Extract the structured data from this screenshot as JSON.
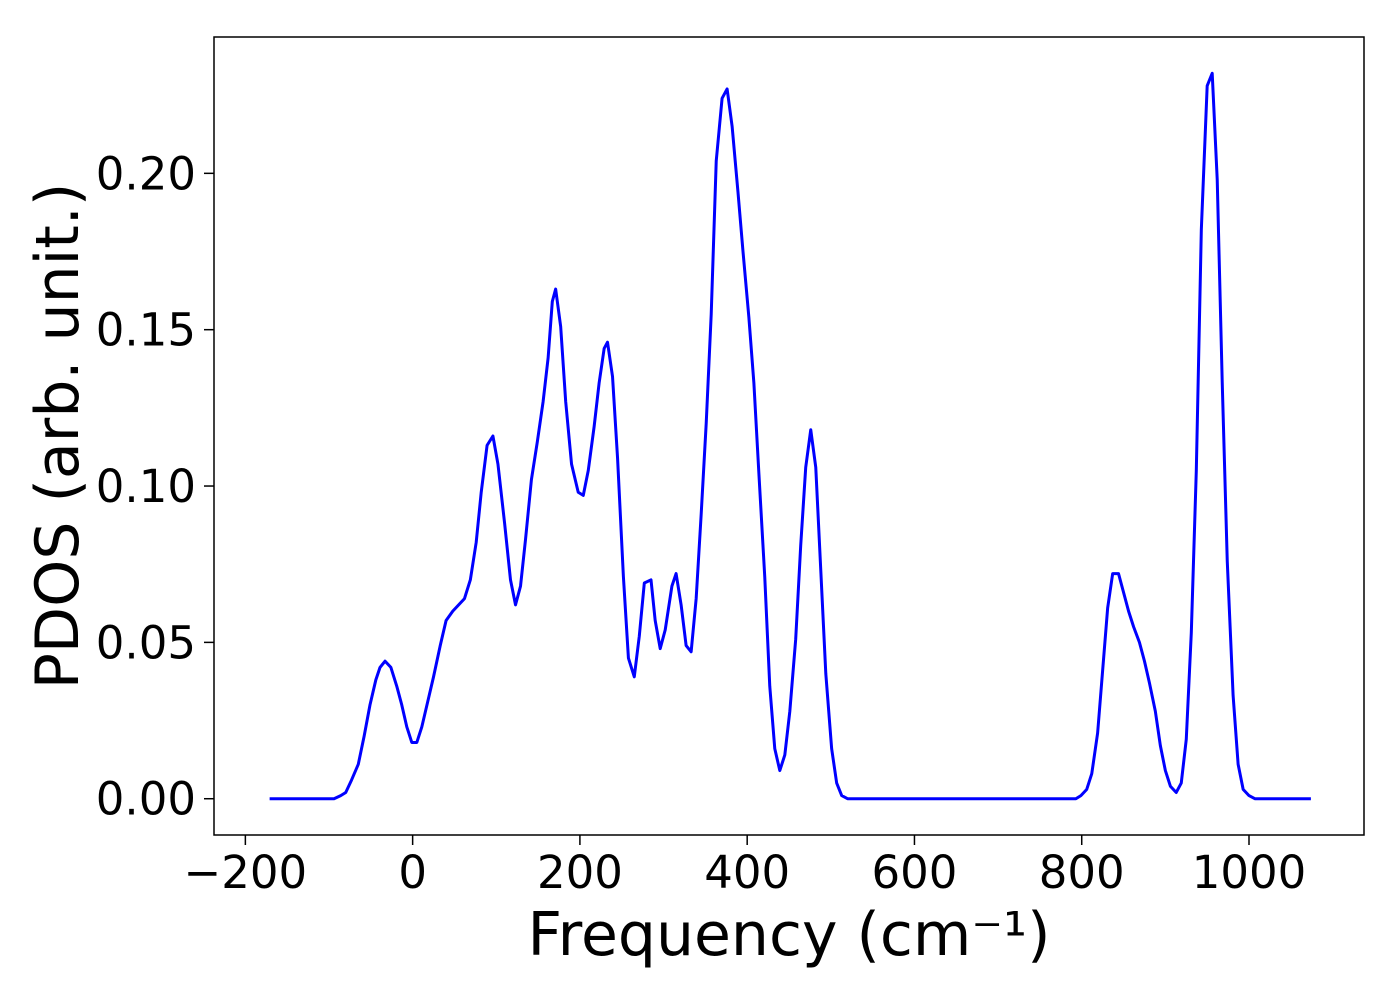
{
  "chart_data": {
    "type": "line",
    "xlabel": "Frequency (cm⁻¹)",
    "ylabel": "PDOS (arb. unit.)",
    "x": [
      -171,
      -94,
      -86,
      -80,
      -73,
      -65,
      -58,
      -51,
      -44,
      -39,
      -33,
      -26,
      -19,
      -13,
      -7,
      -1,
      5,
      11,
      18,
      25,
      33,
      40,
      48,
      55,
      62,
      69,
      76,
      82,
      89,
      96,
      102,
      110,
      117,
      123,
      129,
      135,
      142,
      149,
      156,
      162,
      167,
      171,
      177,
      183,
      190,
      198,
      204,
      210,
      217,
      223,
      229,
      233,
      239,
      245,
      252,
      258,
      265,
      271,
      277,
      285,
      290,
      296,
      302,
      310,
      315,
      321,
      327,
      333,
      339,
      345,
      351,
      357,
      363,
      370,
      376,
      382,
      389,
      395,
      402,
      408,
      414,
      421,
      427,
      433,
      439,
      445,
      451,
      458,
      464,
      470,
      476,
      482,
      488,
      494,
      501,
      507,
      513,
      520,
      793,
      799,
      806,
      812,
      819,
      825,
      831,
      837,
      844,
      850,
      856,
      862,
      869,
      875,
      881,
      888,
      894,
      900,
      906,
      913,
      919,
      925,
      931,
      937,
      943,
      950,
      956,
      962,
      968,
      974,
      981,
      987,
      993,
      1000,
      1007,
      1074
    ],
    "series": [
      {
        "name": "PDOS",
        "color": "#0000ff",
        "values": [
          0,
          0,
          0.001,
          0.002,
          0.006,
          0.011,
          0.02,
          0.03,
          0.038,
          0.042,
          0.044,
          0.042,
          0.036,
          0.03,
          0.023,
          0.018,
          0.018,
          0.023,
          0.031,
          0.039,
          0.049,
          0.057,
          0.06,
          0.062,
          0.064,
          0.07,
          0.082,
          0.098,
          0.113,
          0.116,
          0.107,
          0.088,
          0.07,
          0.062,
          0.068,
          0.083,
          0.102,
          0.114,
          0.127,
          0.141,
          0.159,
          0.163,
          0.151,
          0.127,
          0.107,
          0.098,
          0.097,
          0.105,
          0.119,
          0.133,
          0.144,
          0.146,
          0.135,
          0.109,
          0.071,
          0.045,
          0.039,
          0.052,
          0.069,
          0.07,
          0.057,
          0.048,
          0.054,
          0.068,
          0.072,
          0.062,
          0.049,
          0.047,
          0.064,
          0.091,
          0.12,
          0.155,
          0.204,
          0.224,
          0.227,
          0.215,
          0.194,
          0.175,
          0.154,
          0.133,
          0.104,
          0.071,
          0.036,
          0.016,
          0.009,
          0.014,
          0.028,
          0.051,
          0.081,
          0.106,
          0.118,
          0.106,
          0.073,
          0.04,
          0.016,
          0.005,
          0.001,
          0,
          0,
          0.001,
          0.003,
          0.008,
          0.021,
          0.041,
          0.061,
          0.072,
          0.072,
          0.066,
          0.06,
          0.055,
          0.05,
          0.044,
          0.037,
          0.028,
          0.017,
          0.009,
          0.004,
          0.002,
          0.005,
          0.019,
          0.053,
          0.105,
          0.182,
          0.228,
          0.232,
          0.198,
          0.133,
          0.076,
          0.033,
          0.011,
          0.003,
          0.001,
          0,
          0
        ]
      }
    ],
    "xlim": [
      -237.5,
      1137.5
    ],
    "ylim": [
      -0.0116,
      0.2436
    ],
    "xticks": [
      {
        "value": -200,
        "label": "−200"
      },
      0,
      200,
      400,
      600,
      800,
      1000
    ],
    "yticks": [
      {
        "value": 0,
        "label": "0.00"
      },
      {
        "value": 0.05,
        "label": "0.05"
      },
      {
        "value": 0.1,
        "label": "0.10"
      },
      {
        "value": 0.15,
        "label": "0.15"
      },
      {
        "value": 0.2,
        "label": "0.20"
      }
    ],
    "grid": false
  }
}
